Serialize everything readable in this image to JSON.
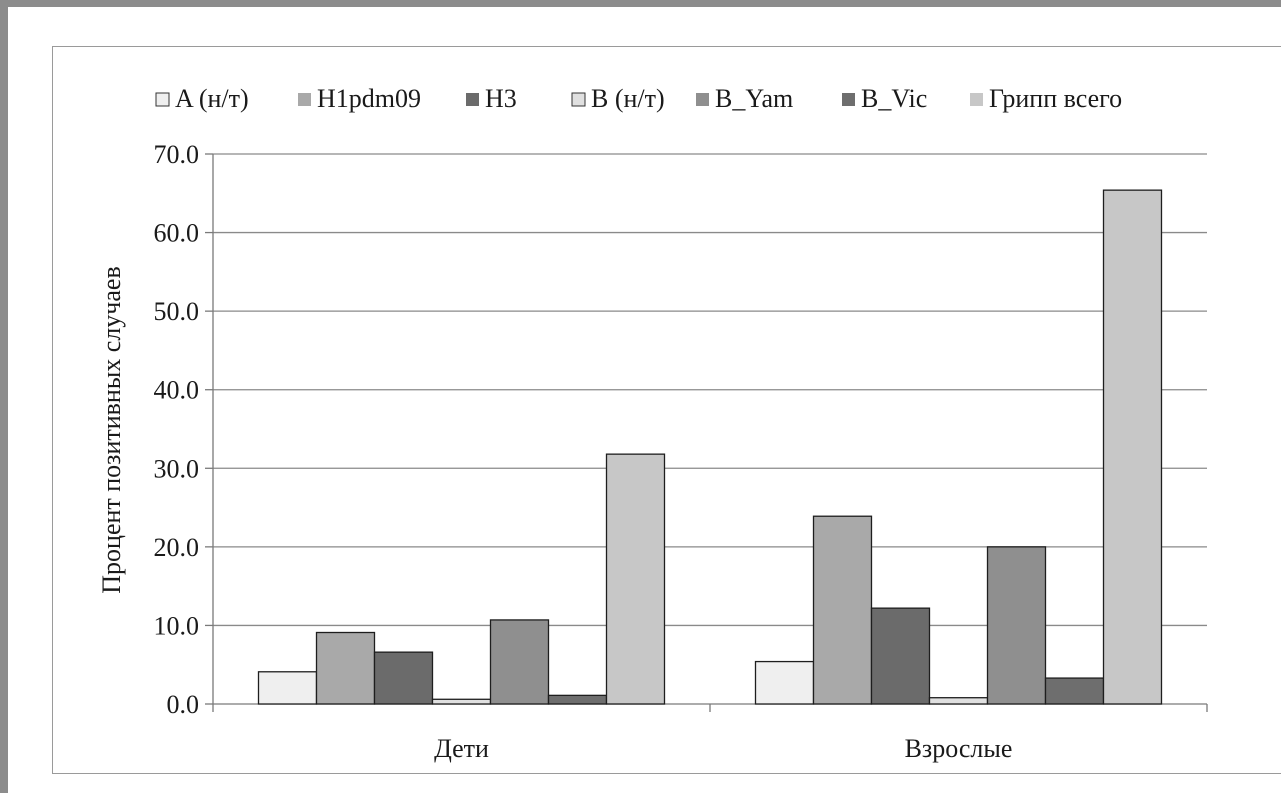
{
  "chart_data": {
    "type": "bar",
    "title": "",
    "xlabel": "",
    "ylabel": "Процент позитивных случаев",
    "ylim": [
      0,
      70
    ],
    "yticks": [
      "0.0",
      "10.0",
      "20.0",
      "30.0",
      "40.0",
      "50.0",
      "60.0",
      "70.0"
    ],
    "grid": true,
    "legend_position": "top",
    "categories": [
      "Дети",
      "Взрослые"
    ],
    "series": [
      {
        "name": "A (н/т)",
        "color": "#efefef",
        "values": [
          4.1,
          5.4
        ]
      },
      {
        "name": "H1pdm09",
        "color": "#a9a9a9",
        "values": [
          9.1,
          23.9
        ]
      },
      {
        "name": "H3",
        "color": "#6b6b6b",
        "values": [
          6.6,
          12.2
        ]
      },
      {
        "name": "B (н/т)",
        "color": "#e0e0e0",
        "values": [
          0.6,
          0.8
        ]
      },
      {
        "name": "B_Yam",
        "color": "#8f8f8f",
        "values": [
          10.7,
          20.0
        ]
      },
      {
        "name": "B_Vic",
        "color": "#6e6e6e",
        "values": [
          1.1,
          3.3
        ]
      },
      {
        "name": "Грипп всего",
        "color": "#c7c7c7",
        "values": [
          31.8,
          65.4
        ]
      }
    ]
  }
}
